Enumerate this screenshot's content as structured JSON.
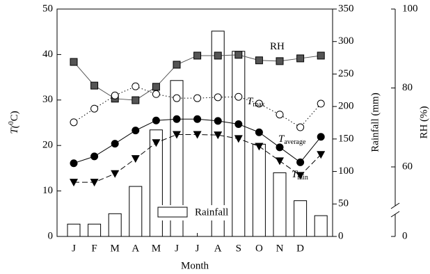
{
  "chart_data": {
    "type": "bar-line",
    "xlabel": "Month",
    "ylabel": {
      "text": "T(",
      "sup": "0",
      "after": "C)"
    },
    "y2label": "Rainfall (mm)",
    "y3label": "RH (%)",
    "categories": [
      "J",
      "F",
      "M",
      "A",
      "M",
      "J",
      "J",
      "A",
      "S",
      "O",
      "N",
      "D",
      null
    ],
    "ylim": [
      0,
      50
    ],
    "yticks": [
      0,
      10,
      20,
      30,
      40,
      50
    ],
    "y2lim": [
      0,
      350
    ],
    "y2ticks": [
      0,
      50,
      100,
      150,
      200,
      250,
      300,
      350
    ],
    "y3lim": [
      60,
      100
    ],
    "y3ticks": [
      0,
      60,
      80,
      100
    ],
    "series": [
      {
        "name": "Rainfall",
        "axis": "y2",
        "kind": "bar",
        "color": "#ffffff",
        "values": [
          19,
          19,
          35,
          77,
          164,
          240,
          null,
          316,
          285,
          142,
          98,
          55,
          32
        ]
      },
      {
        "name": "RH",
        "axis": "y3",
        "kind": "square",
        "color": "#555555",
        "values": [
          86.6,
          80.6,
          77.3,
          76.9,
          80.3,
          85.9,
          88.2,
          88.2,
          88.4,
          87.0,
          86.8,
          87.5,
          88.2
        ]
      },
      {
        "name": "Tmax",
        "axis": "y",
        "kind": "circle-open",
        "color": "#000000",
        "values": [
          25.1,
          28.1,
          31.0,
          33.0,
          31.3,
          30.4,
          30.4,
          30.6,
          30.7,
          29.2,
          26.8,
          24.0,
          29.2
        ]
      },
      {
        "name": "Taverage",
        "axis": "y",
        "kind": "circle",
        "color": "#000000",
        "values": [
          16.1,
          17.6,
          20.4,
          23.3,
          25.5,
          25.8,
          25.8,
          25.4,
          24.7,
          22.9,
          19.6,
          16.3,
          21.9
        ]
      },
      {
        "name": "Tmin",
        "axis": "y",
        "kind": "triangle",
        "color": "#000000",
        "values": [
          11.9,
          11.9,
          13.8,
          17.1,
          20.6,
          22.4,
          22.4,
          22.3,
          21.5,
          19.8,
          16.6,
          13.4,
          18.0
        ]
      }
    ],
    "annotations": [
      {
        "text": "RH"
      },
      {
        "text": "T",
        "sub": "max"
      },
      {
        "text": "T",
        "sub": "average"
      },
      {
        "text": "T",
        "sub": "min"
      }
    ]
  }
}
